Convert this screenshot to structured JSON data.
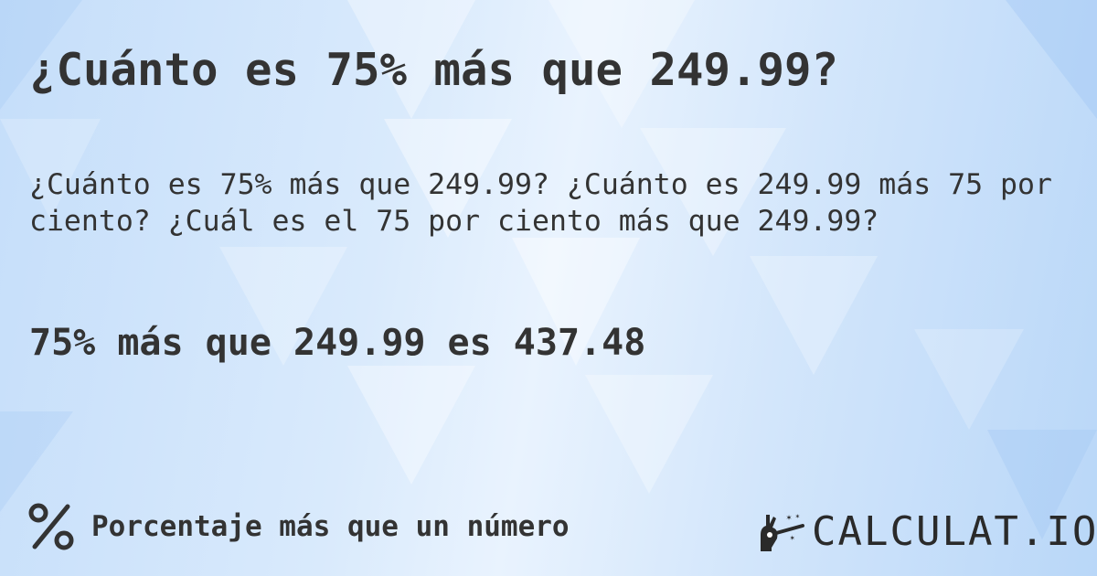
{
  "title": "¿Cuánto es 75% más que 249.99?",
  "description": "¿Cuánto es 75% más que 249.99? ¿Cuánto es 249.99 más 75 por ciento? ¿Cuál es el 75 por ciento más que 249.99?",
  "result": "75% más que 249.99 es 437.48",
  "footer": {
    "category_icon": "percent-icon",
    "category_label": "Porcentaje más que un número"
  },
  "logo": {
    "text": "CALCULAT.IO",
    "icon": "magic-hand-wand-icon"
  },
  "colors": {
    "text": "#333333",
    "background": "#d9eafc"
  }
}
